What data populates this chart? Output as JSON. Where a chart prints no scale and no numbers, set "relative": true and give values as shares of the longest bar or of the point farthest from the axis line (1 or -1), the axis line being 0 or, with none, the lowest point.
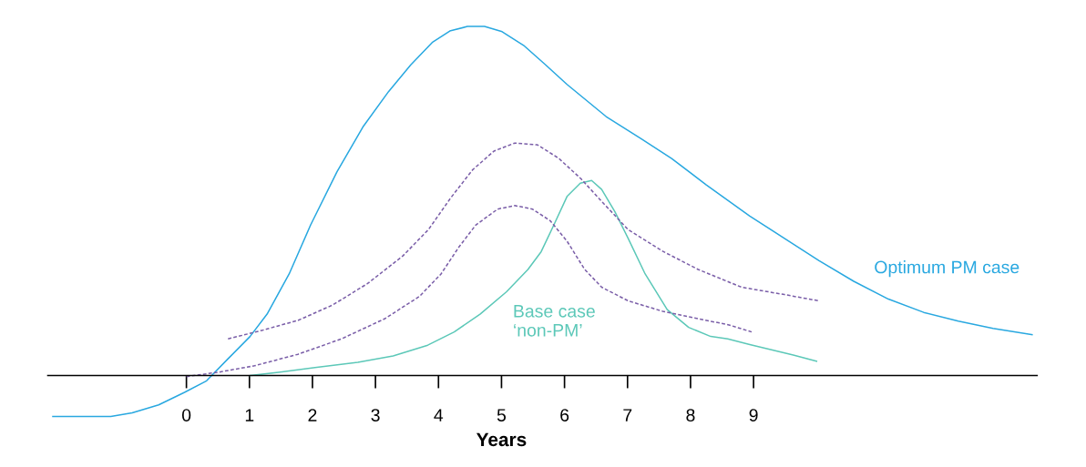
{
  "chart_data": {
    "type": "line",
    "relative": true,
    "xlabel": "Years",
    "xlim": [
      -2.2,
      13.5
    ],
    "xticks": [
      0,
      1,
      2,
      3,
      4,
      5,
      6,
      7,
      8,
      9
    ],
    "tick_labels": "x",
    "grid": false,
    "legend": false,
    "marker": "none",
    "series": [
      {
        "name": "Optimum PM case",
        "color": "#29a8e0",
        "line_style": "solid",
        "x": [
          -2.12,
          -1.2,
          -0.86,
          -0.44,
          -0.03,
          0.32,
          0.66,
          1.01,
          1.28,
          1.63,
          1.97,
          2.39,
          2.8,
          3.21,
          3.56,
          3.9,
          4.18,
          4.46,
          4.73,
          5.01,
          5.35,
          5.7,
          6.04,
          6.66,
          7.21,
          7.7,
          8.25,
          8.94,
          9.49,
          10.04,
          10.59,
          11.14,
          11.7,
          12.25,
          12.8,
          13.42
        ],
        "values": [
          -0.117,
          -0.117,
          -0.107,
          -0.084,
          -0.048,
          -0.015,
          0.048,
          0.112,
          0.176,
          0.291,
          0.431,
          0.584,
          0.712,
          0.814,
          0.89,
          0.954,
          0.987,
          1.0,
          1.0,
          0.985,
          0.946,
          0.89,
          0.834,
          0.742,
          0.679,
          0.622,
          0.546,
          0.457,
          0.393,
          0.329,
          0.27,
          0.219,
          0.181,
          0.156,
          0.135,
          0.117
        ]
      },
      {
        "name": "Base case\n‘non-PM’",
        "color": "#5cc8b8",
        "line_style": "solid",
        "x": [
          1.01,
          1.49,
          2.04,
          2.72,
          3.28,
          3.83,
          4.25,
          4.66,
          5.08,
          5.42,
          5.63,
          5.83,
          6.04,
          6.25,
          6.43,
          6.59,
          6.8,
          7.01,
          7.28,
          7.63,
          7.97,
          8.32,
          8.59,
          8.94,
          9.21,
          9.63,
          10.0
        ],
        "values": [
          0,
          0.01,
          0.023,
          0.038,
          0.056,
          0.087,
          0.125,
          0.176,
          0.24,
          0.304,
          0.355,
          0.431,
          0.513,
          0.551,
          0.559,
          0.533,
          0.469,
          0.393,
          0.291,
          0.189,
          0.138,
          0.112,
          0.105,
          0.089,
          0.077,
          0.059,
          0.041
        ]
      },
      {
        "color": "#7a5ea8",
        "line_style": "dashed",
        "x": [
          0.66,
          1.21,
          1.77,
          2.32,
          2.87,
          3.43,
          3.84,
          4.19,
          4.54,
          4.88,
          5.21,
          5.57,
          5.91,
          6.26,
          6.61,
          7.01,
          7.57,
          8.12,
          8.81,
          9.49,
          10.04
        ],
        "values": [
          0.105,
          0.13,
          0.158,
          0.202,
          0.263,
          0.342,
          0.418,
          0.508,
          0.589,
          0.643,
          0.666,
          0.661,
          0.622,
          0.564,
          0.495,
          0.418,
          0.355,
          0.304,
          0.253,
          0.232,
          0.214
        ]
      },
      {
        "color": "#7a5ea8",
        "line_style": "dashed",
        "x": [
          0,
          0.52,
          1.08,
          1.77,
          2.46,
          3.15,
          3.7,
          4.04,
          4.32,
          4.59,
          4.94,
          5.21,
          5.49,
          5.77,
          6.04,
          6.32,
          6.59,
          7.01,
          7.56,
          8.12,
          8.61,
          8.97
        ],
        "values": [
          -0.003,
          0.01,
          0.028,
          0.061,
          0.105,
          0.163,
          0.227,
          0.291,
          0.367,
          0.431,
          0.477,
          0.487,
          0.477,
          0.444,
          0.385,
          0.304,
          0.253,
          0.214,
          0.184,
          0.163,
          0.145,
          0.125
        ]
      }
    ]
  }
}
